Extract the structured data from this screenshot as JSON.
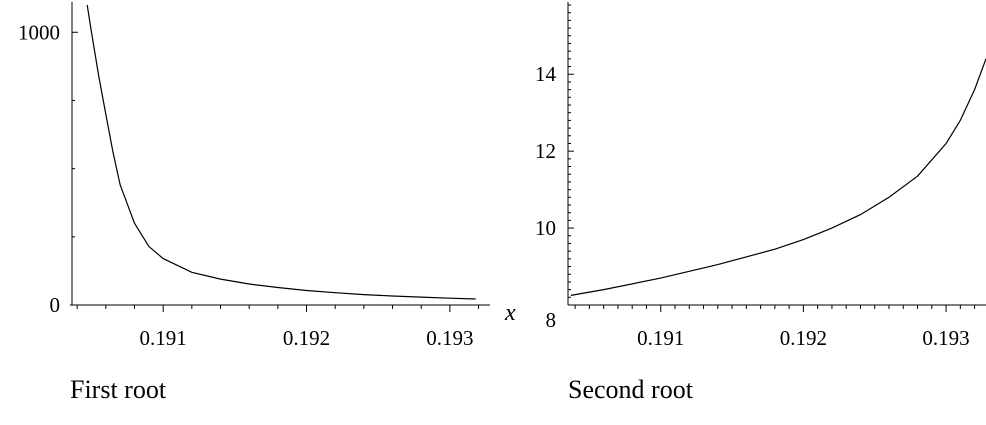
{
  "chart_data": [
    {
      "type": "line",
      "caption": "First root",
      "xlabel": "x",
      "ylabel": "",
      "xlim": [
        0.19035,
        0.19328
      ],
      "ylim": [
        0,
        1100
      ],
      "xticks": [
        "0.191",
        "0.192",
        "0.193"
      ],
      "yticks": [
        "0",
        "1000"
      ],
      "series": [
        {
          "x": [
            0.19047,
            0.1905,
            0.19055,
            0.1906,
            0.19065,
            0.1907,
            0.1908,
            0.1909,
            0.191,
            0.1912,
            0.1914,
            0.1916,
            0.1918,
            0.192,
            0.1922,
            0.1924,
            0.1926,
            0.1928,
            0.193,
            0.19318
          ],
          "y": [
            1100,
            1000,
            840,
            700,
            560,
            440,
            300,
            215,
            170,
            120,
            95,
            77,
            64,
            53,
            45,
            38,
            33,
            29,
            25,
            22
          ]
        }
      ]
    },
    {
      "type": "line",
      "caption": "Second root",
      "xlabel": "",
      "ylabel": "",
      "xlim": [
        0.19035,
        0.19328
      ],
      "ylim": [
        8,
        15.8
      ],
      "xticks": [
        "0.191",
        "0.192",
        "0.193"
      ],
      "yticks": [
        "8",
        "10",
        "12",
        "14"
      ],
      "series": [
        {
          "x": [
            0.19037,
            0.1906,
            0.191,
            0.1914,
            0.1918,
            0.192,
            0.1922,
            0.1924,
            0.1926,
            0.1928,
            0.193,
            0.1931,
            0.1932,
            0.19328
          ],
          "y": [
            8.25,
            8.4,
            8.7,
            9.05,
            9.45,
            9.7,
            10.0,
            10.35,
            10.8,
            11.35,
            12.2,
            12.8,
            13.6,
            14.4
          ]
        }
      ]
    }
  ]
}
